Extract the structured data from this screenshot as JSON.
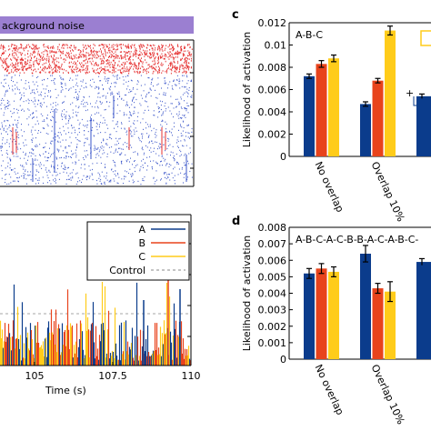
{
  "colors": {
    "A": "#0b3c8c",
    "B": "#e8431c",
    "C": "#ffcc1a",
    "raster_red": "#e53030",
    "raster_blue": "#3a55c9",
    "band": "#9b7fd1"
  },
  "panel_letters": {
    "c": "c",
    "d": "d"
  },
  "raster": {
    "band_label": "ackground noise"
  },
  "activity": {
    "x_ticks": [
      "105",
      "107.5",
      "110"
    ],
    "xlabel": "Time (s)",
    "legend": [
      "A",
      "B",
      "C",
      "Control"
    ]
  },
  "chart_data": [
    {
      "type": "bar",
      "panel": "c",
      "annotation": "A-B-C",
      "categories": [
        "No overlap",
        "Overlap 10%"
      ],
      "series": [
        {
          "name": "A",
          "values": [
            0.0072,
            0.0047
          ]
        },
        {
          "name": "B",
          "values": [
            0.0083,
            0.0068
          ]
        },
        {
          "name": "C",
          "values": [
            0.0088,
            0.0113
          ]
        }
      ],
      "errors": [
        [
          0.0002,
          0.0002
        ],
        [
          0.0003,
          0.0002
        ],
        [
          0.0003,
          0.0004
        ]
      ],
      "partial_next": 0.0054,
      "ylabel": "Likelihood of activation",
      "ylim": [
        0,
        0.012
      ],
      "y_ticks": [
        "0",
        "0.002",
        "0.004",
        "0.006",
        "0.008",
        "0.01",
        "0.012"
      ]
    },
    {
      "type": "bar",
      "panel": "d",
      "annotation": "A-B-C-A-C-B-B-A-C-A-B-C-",
      "categories": [
        "No overlap",
        "Overlap 10%"
      ],
      "series": [
        {
          "name": "A",
          "values": [
            0.0052,
            0.0064
          ]
        },
        {
          "name": "B",
          "values": [
            0.0055,
            0.0043
          ]
        },
        {
          "name": "C",
          "values": [
            0.0053,
            0.0041
          ]
        }
      ],
      "errors": [
        [
          0.0003,
          0.0005
        ],
        [
          0.0003,
          0.0003
        ],
        [
          0.0003,
          0.0006
        ]
      ],
      "partial_next": 0.0059,
      "ylabel": "Likelihood of activation",
      "ylim": [
        0,
        0.008
      ],
      "y_ticks": [
        "0",
        "0.001",
        "0.002",
        "0.003",
        "0.004",
        "0.005",
        "0.006",
        "0.007",
        "0.008"
      ]
    }
  ]
}
